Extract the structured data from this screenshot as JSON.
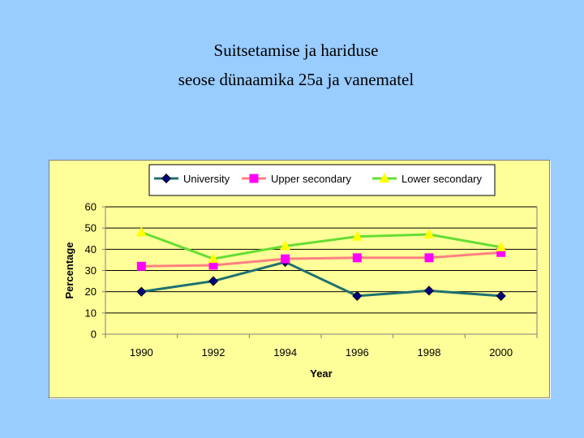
{
  "slide": {
    "title_line1": "Suitsetamise ja hariduse",
    "title_line2": "seose dünaamika 25a ja vanematel"
  },
  "colors": {
    "background": "#99ccff",
    "plot_area": "#ffff99",
    "grid": "#000000"
  },
  "chart_data": {
    "type": "line",
    "title": "",
    "xlabel": "Year",
    "ylabel": "Percentage",
    "categories": [
      "1990",
      "1992",
      "1994",
      "1996",
      "1998",
      "2000"
    ],
    "ylim": [
      0,
      60
    ],
    "yticks": [
      0,
      10,
      20,
      30,
      40,
      50,
      60
    ],
    "grid": true,
    "legend_position": "top",
    "series": [
      {
        "name": "University",
        "values": [
          20,
          25,
          34,
          18,
          20.5,
          18
        ],
        "line_color": "#1f7070",
        "marker": "diamond",
        "marker_color": "#000080"
      },
      {
        "name": "Upper secondary",
        "values": [
          32,
          32.5,
          35.5,
          36,
          36,
          38.5
        ],
        "line_color": "#ff8080",
        "marker": "square",
        "marker_color": "#ff00ff"
      },
      {
        "name": "Lower secondary",
        "values": [
          48,
          35.5,
          41.5,
          46,
          47,
          41
        ],
        "line_color": "#66dd33",
        "marker": "triangle",
        "marker_color": "#ffff00"
      }
    ]
  }
}
